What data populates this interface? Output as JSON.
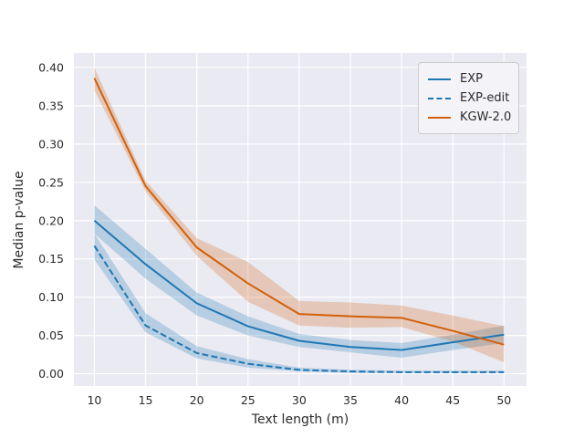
{
  "figure": {
    "background": "#ffffff",
    "plot_background": "#eaeaf2",
    "grid_color": "#ffffff",
    "text_color": "#2b2b2b",
    "legend_border": "#cccccc"
  },
  "chart_data": {
    "type": "line",
    "title": "",
    "xlabel": "Text length (m)",
    "ylabel": "Median p-value",
    "x": [
      10,
      15,
      20,
      25,
      30,
      35,
      40,
      45,
      50
    ],
    "xticks": [
      10,
      15,
      20,
      25,
      30,
      35,
      40,
      45,
      50
    ],
    "yticks": [
      0.0,
      0.05,
      0.1,
      0.15,
      0.2,
      0.25,
      0.3,
      0.35,
      0.4
    ],
    "xlim": [
      8,
      52.2
    ],
    "ylim": [
      -0.016,
      0.419
    ],
    "grid": true,
    "legend_position": "upper right",
    "band_opacity": 0.25,
    "line_width": 2,
    "series": [
      {
        "name": "EXP",
        "color": "#1f77b4",
        "style": "solid",
        "values": [
          0.2,
          0.143,
          0.092,
          0.062,
          0.043,
          0.035,
          0.031,
          0.041,
          0.051
        ],
        "band_lower": [
          0.183,
          0.124,
          0.076,
          0.05,
          0.035,
          0.028,
          0.021,
          0.031,
          0.04
        ],
        "band_upper": [
          0.22,
          0.163,
          0.106,
          0.075,
          0.052,
          0.044,
          0.04,
          0.051,
          0.063
        ]
      },
      {
        "name": "EXP-edit",
        "color": "#1f77b4",
        "style": "dashed",
        "values": [
          0.167,
          0.063,
          0.027,
          0.013,
          0.005,
          0.003,
          0.002,
          0.002,
          0.002
        ],
        "band_lower": [
          0.149,
          0.054,
          0.02,
          0.008,
          0.003,
          0.001,
          0.001,
          0.001,
          0.001
        ],
        "band_upper": [
          0.183,
          0.079,
          0.036,
          0.019,
          0.008,
          0.005,
          0.004,
          0.004,
          0.004
        ]
      },
      {
        "name": "KGW-2.0",
        "color": "#d2600a",
        "style": "solid",
        "values": [
          0.386,
          0.245,
          0.165,
          0.118,
          0.078,
          0.075,
          0.073,
          0.056,
          0.038
        ],
        "band_lower": [
          0.37,
          0.238,
          0.154,
          0.094,
          0.063,
          0.06,
          0.061,
          0.042,
          0.015
        ],
        "band_upper": [
          0.4,
          0.252,
          0.177,
          0.146,
          0.095,
          0.093,
          0.089,
          0.076,
          0.062
        ]
      }
    ]
  }
}
